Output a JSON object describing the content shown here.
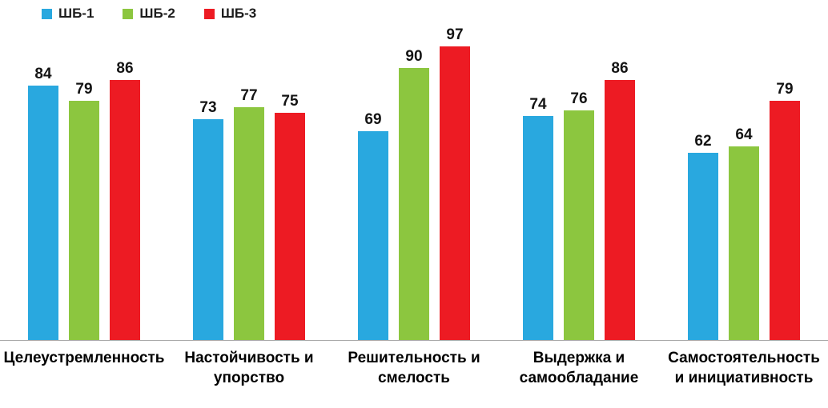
{
  "chart_data": {
    "type": "bar",
    "title": "",
    "xlabel": "",
    "ylabel": "",
    "ylim": [
      0,
      100
    ],
    "grid": false,
    "legend_position": "top-left",
    "axis_line_color": "#a8a8a8",
    "categories": [
      "Целеустремленность",
      "Настойчивость и упорство",
      "Решительность и смелость",
      "Выдержка и самообладание",
      "Самостоятельность и инициативность"
    ],
    "series": [
      {
        "name": "ШБ-1",
        "color": "#29a8df",
        "values": [
          84,
          73,
          69,
          74,
          62
        ]
      },
      {
        "name": "ШБ-2",
        "color": "#8cc63f",
        "values": [
          79,
          77,
          90,
          76,
          64
        ]
      },
      {
        "name": "ШБ-3",
        "color": "#ed1b23",
        "values": [
          86,
          75,
          97,
          86,
          79
        ]
      }
    ]
  }
}
